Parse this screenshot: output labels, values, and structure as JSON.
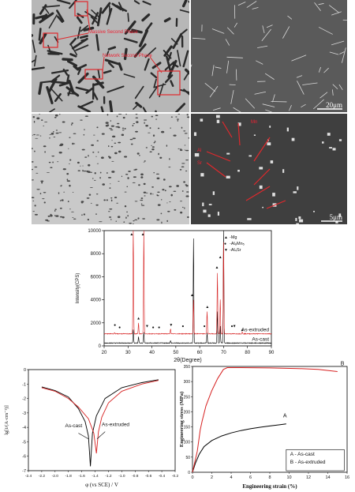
{
  "figure": {
    "micrographs": [
      {
        "id": "a",
        "scale": "",
        "annotations": [
          "Massive Second Phase",
          "Network Second Phase"
        ],
        "colors": {
          "bg": "#b7b7b7",
          "phase": "#2a2a2a",
          "ann": "#e0282c"
        }
      },
      {
        "id": "b",
        "scale": "20μm",
        "annotations": [],
        "colors": {
          "bg": "#5a5a5a",
          "phase": "#d8d8d8"
        }
      },
      {
        "id": "c",
        "scale": "",
        "annotations": [],
        "colors": {
          "bg": "#c9c9c9",
          "phase": "#4a4a4a"
        }
      },
      {
        "id": "d",
        "scale": "5μm",
        "annotations": [
          "Mn",
          "Al",
          "Sr"
        ],
        "colors": {
          "bg": "#3f3f3f",
          "phase": "#e0e0e0",
          "ann": "#e0282c"
        }
      }
    ]
  },
  "chart_data": [
    {
      "type": "line",
      "xlabel": "2θ(Degree)",
      "ylabel": "Intensity(CPS)",
      "xlim": [
        20,
        90
      ],
      "ylim": [
        0,
        10000
      ],
      "xticks": [
        "20",
        "30",
        "40",
        "50",
        "60",
        "70",
        "80",
        "90"
      ],
      "yticks": [
        "0",
        "2000",
        "4000",
        "6000",
        "8000",
        "10000"
      ],
      "legend": [
        {
          "marker": "▲",
          "text": "-Mg"
        },
        {
          "marker": "●",
          "text": "-Al₈Mn₅"
        },
        {
          "marker": "▼",
          "text": "-Al₄Sr"
        }
      ],
      "series": [
        {
          "name": "As-cast",
          "color": "#000000",
          "baseline": 250,
          "peaks": [
            [
              32.2,
              1400
            ],
            [
              34.4,
              800
            ],
            [
              36.6,
              1200
            ],
            [
              47.8,
              450
            ],
            [
              57.4,
              9300
            ],
            [
              63.1,
              1100
            ],
            [
              67.4,
              3000
            ],
            [
              68.6,
              1700
            ],
            [
              70.0,
              10000
            ]
          ]
        },
        {
          "name": "As-extruded",
          "color": "#d62020",
          "baseline": 1050,
          "peaks": [
            [
              24.4,
              1150
            ],
            [
              32.2,
              10000
            ],
            [
              34.4,
              2000
            ],
            [
              36.6,
              10000
            ],
            [
              47.8,
              1500
            ],
            [
              57.4,
              4000
            ],
            [
              63.1,
              3000
            ],
            [
              67.4,
              6300
            ],
            [
              68.6,
              4000
            ],
            [
              70.0,
              9000
            ],
            [
              77.8,
              1200
            ]
          ]
        }
      ],
      "markers": [
        {
          "x": 31.5,
          "y": 9600,
          "sym": "▲"
        },
        {
          "x": 36.2,
          "y": 9600,
          "sym": "▲"
        },
        {
          "x": 34.4,
          "y": 2300,
          "sym": "▲"
        },
        {
          "x": 56.8,
          "y": 4300,
          "sym": "▲"
        },
        {
          "x": 63.2,
          "y": 3300,
          "sym": "▲"
        },
        {
          "x": 67.2,
          "y": 6700,
          "sym": "▲"
        },
        {
          "x": 68.6,
          "y": 7600,
          "sym": "▲"
        },
        {
          "x": 77.8,
          "y": 1300,
          "sym": "▲"
        },
        {
          "x": 24.5,
          "y": 1700,
          "sym": "●"
        },
        {
          "x": 26.5,
          "y": 1500,
          "sym": "●"
        },
        {
          "x": 40.5,
          "y": 1500,
          "sym": "●"
        },
        {
          "x": 43.0,
          "y": 1500,
          "sym": "●"
        },
        {
          "x": 53.0,
          "y": 1600,
          "sym": "●"
        },
        {
          "x": 62.0,
          "y": 1600,
          "sym": "●"
        },
        {
          "x": 73.5,
          "y": 1600,
          "sym": "●"
        },
        {
          "x": 38.0,
          "y": 1600,
          "sym": "▼"
        },
        {
          "x": 48.0,
          "y": 1700,
          "sym": "▼"
        },
        {
          "x": 74.5,
          "y": 1600,
          "sym": "▼"
        }
      ]
    },
    {
      "type": "line",
      "xlabel": "φ (vs SCE) / V",
      "ylabel": "lg[i/(A·cm⁻²)]",
      "xlim": [
        -2.4,
        -0.2
      ],
      "ylim": [
        -7,
        0
      ],
      "xticks": [
        "-2.4",
        "-2.2",
        "-2.0",
        "-1.8",
        "-1.6",
        "-1.4",
        "-1.2",
        "-1.0",
        "-0.8",
        "-0.6",
        "-0.4",
        "-0.2"
      ],
      "yticks": [
        "0",
        "-1",
        "-2",
        "-3",
        "-4",
        "-5",
        "-6",
        "-7"
      ],
      "annotations": [
        "As-cast",
        "As-extruded"
      ],
      "series": [
        {
          "name": "As-cast",
          "color": "#000000",
          "points": [
            [
              -2.2,
              -1.2
            ],
            [
              -2.0,
              -1.45
            ],
            [
              -1.8,
              -1.9
            ],
            [
              -1.65,
              -2.7
            ],
            [
              -1.55,
              -3.6
            ],
            [
              -1.5,
              -4.6
            ],
            [
              -1.47,
              -6.7
            ],
            [
              -1.44,
              -4.4
            ],
            [
              -1.38,
              -3.2
            ],
            [
              -1.25,
              -2.0
            ],
            [
              -1.0,
              -1.25
            ],
            [
              -0.7,
              -0.9
            ],
            [
              -0.45,
              -0.7
            ]
          ]
        },
        {
          "name": "As-extruded",
          "color": "#d62020",
          "points": [
            [
              -2.2,
              -1.25
            ],
            [
              -2.0,
              -1.5
            ],
            [
              -1.8,
              -2.0
            ],
            [
              -1.65,
              -2.6
            ],
            [
              -1.5,
              -3.4
            ],
            [
              -1.42,
              -4.4
            ],
            [
              -1.38,
              -5.8
            ],
            [
              -1.35,
              -4.3
            ],
            [
              -1.3,
              -3.3
            ],
            [
              -1.2,
              -2.3
            ],
            [
              -1.0,
              -1.5
            ],
            [
              -0.7,
              -1.0
            ],
            [
              -0.45,
              -0.75
            ]
          ]
        }
      ]
    },
    {
      "type": "line",
      "xlabel": "Engineering strain (%)",
      "ylabel": "Engineering stress (MPa)",
      "xlim": [
        0,
        16
      ],
      "ylim": [
        0,
        350
      ],
      "xticks": [
        "0",
        "2",
        "4",
        "6",
        "8",
        "10",
        "12",
        "14",
        "16"
      ],
      "yticks": [
        "0",
        "50",
        "100",
        "150",
        "200",
        "250",
        "300",
        "350"
      ],
      "legend": [
        "A - As-cast",
        "B - As-extruded"
      ],
      "series": [
        {
          "name": "A",
          "color": "#000000",
          "points": [
            [
              0,
              0
            ],
            [
              0.3,
              30
            ],
            [
              0.7,
              60
            ],
            [
              1.2,
              85
            ],
            [
              2,
              105
            ],
            [
              3,
              120
            ],
            [
              4,
              130
            ],
            [
              5,
              138
            ],
            [
              6,
              144
            ],
            [
              7,
              149
            ],
            [
              8,
              153
            ],
            [
              9,
              157
            ],
            [
              9.7,
              160
            ]
          ]
        },
        {
          "name": "B",
          "color": "#d62020",
          "points": [
            [
              0,
              0
            ],
            [
              0.5,
              70
            ],
            [
              0.8,
              140
            ],
            [
              1.0,
              170
            ],
            [
              1.4,
              220
            ],
            [
              2,
              270
            ],
            [
              2.6,
              310
            ],
            [
              3.2,
              340
            ],
            [
              3.6,
              346
            ],
            [
              5,
              346
            ],
            [
              8,
              345
            ],
            [
              11,
              343
            ],
            [
              13,
              340
            ],
            [
              15,
              333
            ]
          ]
        }
      ]
    }
  ]
}
